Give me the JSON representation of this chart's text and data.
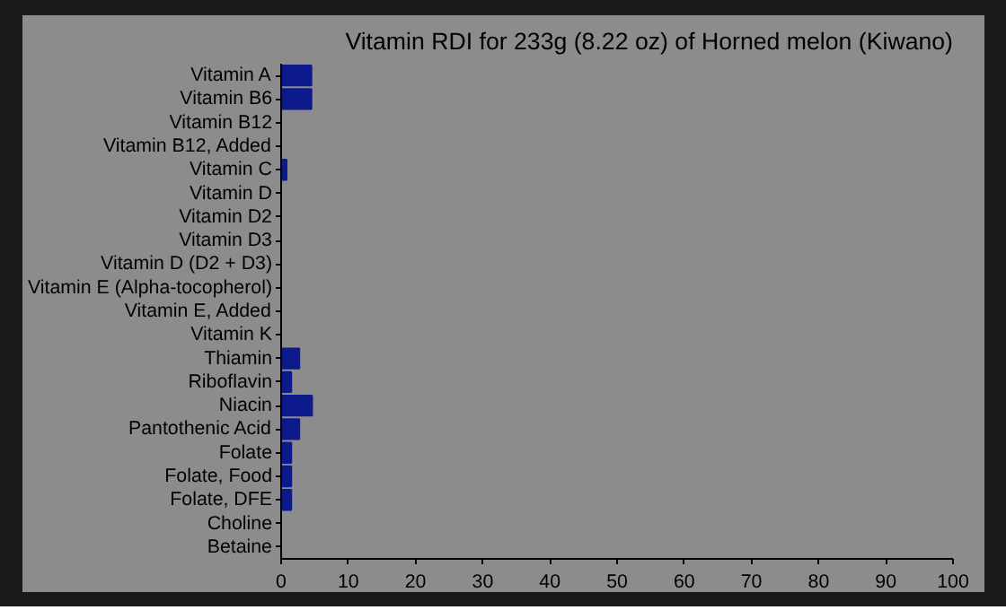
{
  "chart_data": {
    "type": "bar",
    "orientation": "horizontal",
    "title": "Vitamin RDI for 233g (8.22 oz) of Horned melon (Kiwano)",
    "categories": [
      "Vitamin A",
      "Vitamin B6",
      "Vitamin B12",
      "Vitamin B12, Added",
      "Vitamin C",
      "Vitamin D",
      "Vitamin D2",
      "Vitamin D3",
      "Vitamin D (D2 + D3)",
      "Vitamin E (Alpha-tocopherol)",
      "Vitamin E, Added",
      "Vitamin K",
      "Thiamin",
      "Riboflavin",
      "Niacin",
      "Pantothenic Acid",
      "Folate",
      "Folate, Food",
      "Folate, DFE",
      "Choline",
      "Betaine"
    ],
    "values": [
      4.5,
      4.5,
      0,
      0,
      0.8,
      0,
      0,
      0,
      0,
      0,
      0,
      0,
      2.7,
      1.5,
      4.6,
      2.7,
      1.5,
      1.5,
      1.5,
      0,
      0
    ],
    "color": "#0c1a8c",
    "xlim": [
      0,
      100
    ],
    "xticks": [
      0,
      10,
      20,
      30,
      40,
      50,
      60,
      70,
      80,
      90,
      100
    ],
    "grid": false
  }
}
